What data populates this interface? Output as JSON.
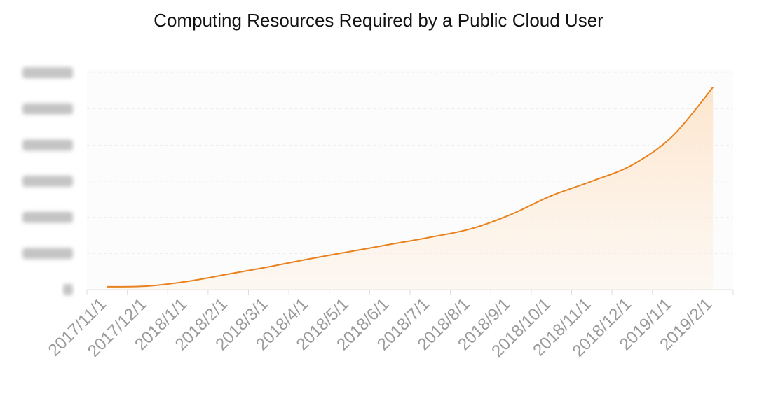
{
  "chart_data": {
    "type": "area",
    "title": "Computing Resources Required by a Public Cloud User",
    "xlabel": "",
    "ylabel": "",
    "y_tick_labels_obscured": true,
    "ylim": [
      0,
      6
    ],
    "y_tick_count": 7,
    "grid": "horizontal dashed",
    "color": "#e8821e",
    "fill": "#fde9d6",
    "categories": [
      "2017/11/1",
      "2017/12/1",
      "2018/1/1",
      "2018/2/1",
      "2018/3/1",
      "2018/4/1",
      "2018/5/1",
      "2018/6/1",
      "2018/7/1",
      "2018/8/1",
      "2018/9/1",
      "2018/10/1",
      "2018/11/1",
      "2018/12/1",
      "2019/1/1",
      "2019/2/1"
    ],
    "series": [
      {
        "values": [
          0.08,
          0.1,
          0.23,
          0.43,
          0.63,
          0.85,
          1.05,
          1.25,
          1.45,
          1.68,
          2.08,
          2.6,
          3.0,
          3.45,
          4.25,
          5.6
        ]
      }
    ]
  }
}
